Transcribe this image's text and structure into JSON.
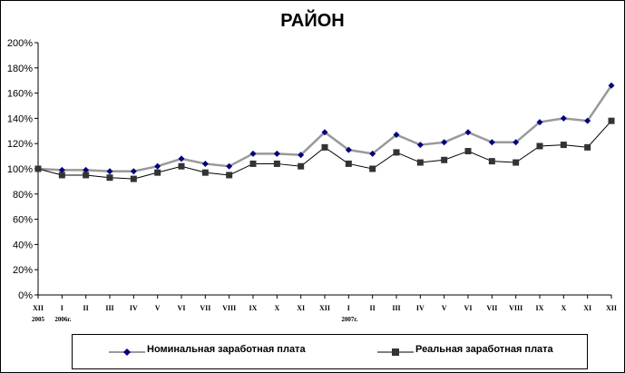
{
  "chart_data": {
    "type": "line",
    "title": "РАЙОН",
    "ylim": [
      0,
      200
    ],
    "y_ticks": [
      "0%",
      "20%",
      "40%",
      "60%",
      "80%",
      "100%",
      "120%",
      "140%",
      "160%",
      "180%",
      "200%"
    ],
    "categories": [
      "XII",
      "I",
      "II",
      "III",
      "IV",
      "V",
      "VI",
      "VII",
      "VIII",
      "IX",
      "X",
      "XI",
      "XII",
      "I",
      "II",
      "III",
      "IV",
      "V",
      "VI",
      "VII",
      "VIII",
      "IX",
      "X",
      "XI",
      "XII"
    ],
    "year_labels": [
      {
        "index": 0,
        "text": "2005"
      },
      {
        "index": 1,
        "text": "2006г."
      },
      {
        "index": 13,
        "text": "2007г."
      }
    ],
    "series": [
      {
        "name": "Номинальная заработная плата",
        "color": "#999999",
        "marker_color": "#000080",
        "marker": "diamond",
        "values": [
          100,
          99,
          99,
          98,
          98,
          102,
          108,
          104,
          102,
          112,
          112,
          111,
          129,
          115,
          112,
          127,
          119,
          121,
          129,
          121,
          121,
          137,
          140,
          138,
          166
        ]
      },
      {
        "name": "Реальная заработная плата",
        "color": "#000000",
        "marker_color": "#333333",
        "marker": "square",
        "values": [
          100,
          95,
          95,
          93,
          92,
          97,
          102,
          97,
          95,
          104,
          104,
          102,
          117,
          104,
          100,
          113,
          105,
          107,
          114,
          106,
          105,
          118,
          119,
          117,
          138
        ]
      }
    ],
    "grid": false,
    "legend_position": "bottom"
  }
}
